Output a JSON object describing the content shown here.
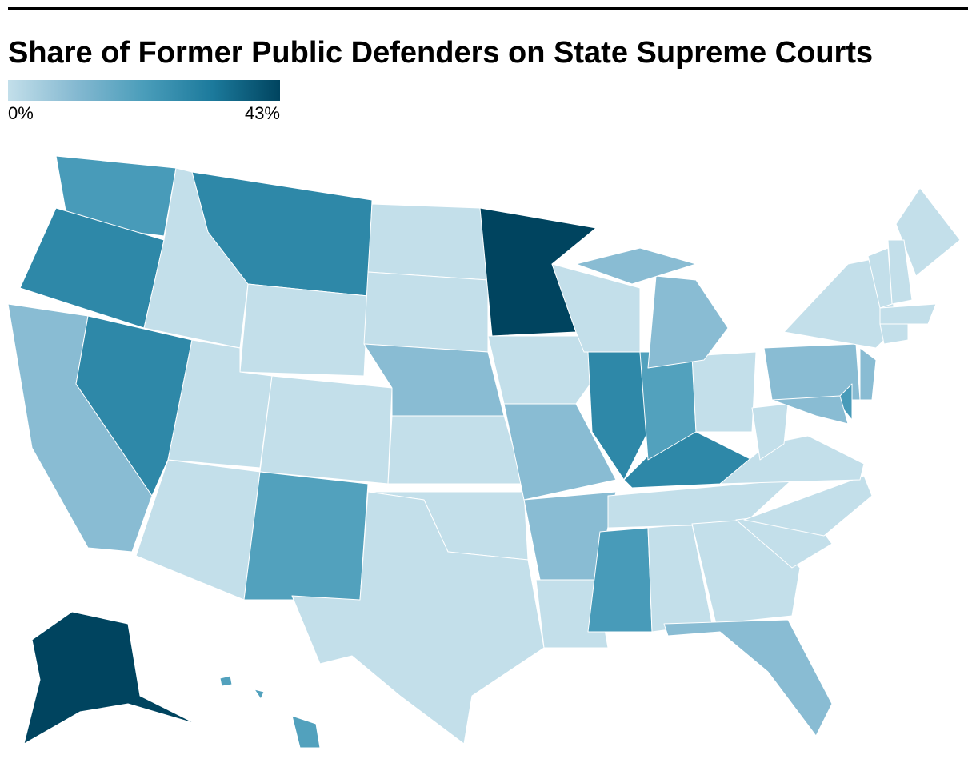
{
  "title": "Share of Former Public Defenders on State Supreme Courts",
  "legend": {
    "min": {
      "value": 0,
      "label": "0%"
    },
    "max": {
      "value": 43,
      "label": "43%"
    },
    "colors": [
      "#c3dfea",
      "#85b9d1",
      "#4a9dba",
      "#1c7a9c",
      "#00445f"
    ]
  },
  "values": [
    22,
    28,
    10,
    28,
    0,
    28,
    0,
    0,
    0,
    0,
    20,
    0,
    0,
    10,
    0,
    0,
    0,
    43,
    0,
    10,
    10,
    0,
    0,
    28,
    22,
    0,
    0,
    28,
    20,
    0,
    10,
    10,
    0,
    10,
    0,
    0,
    0,
    0,
    10,
    0,
    10,
    22,
    10,
    0,
    0,
    0,
    0,
    0,
    43,
    20,
    20,
    20
  ]
}
